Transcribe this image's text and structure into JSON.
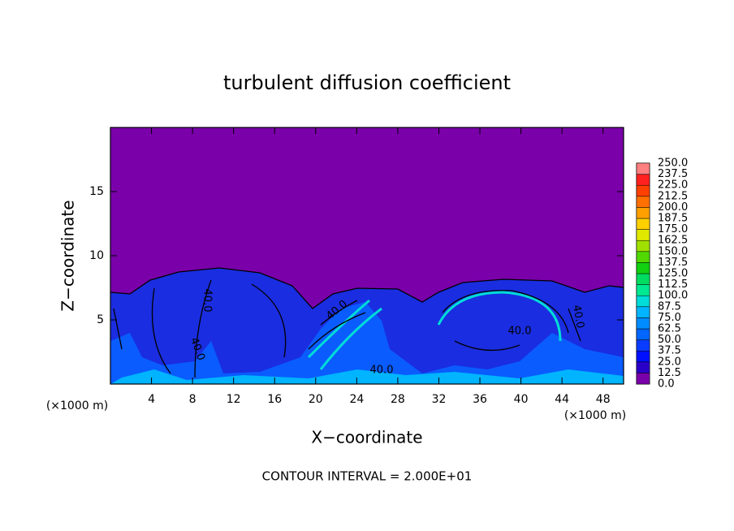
{
  "chart_data": {
    "type": "contour",
    "title": "turbulent diffusion coefficient",
    "x_label": "X−coordinate",
    "y_label": "Z−coordinate",
    "x_units": [
      "(×1000 m)",
      "(×1000 m)"
    ],
    "footnote": "CONTOUR INTERVAL = 2.000E+01",
    "contour_labels": [
      "40.0",
      "40.0",
      "40.0",
      "40.0",
      "40.0",
      "40.0"
    ],
    "xlim": [
      0,
      50
    ],
    "ylim": [
      0,
      20
    ],
    "xticks": [
      4,
      8,
      12,
      16,
      20,
      24,
      28,
      32,
      36,
      40,
      44,
      48
    ],
    "yticks": [
      5,
      10,
      15
    ],
    "colorbar": {
      "levels": [
        {
          "value": 0,
          "label": "0.0"
        },
        12.5,
        {
          "value": 25,
          "label": "25.0"
        },
        37.5,
        {
          "value": 50,
          "label": "50.0"
        },
        62.5,
        {
          "value": 75,
          "label": "75.0"
        },
        87.5,
        {
          "value": 100,
          "label": "100.0"
        },
        112.5,
        {
          "value": 125,
          "label": "125.0"
        },
        137.5,
        {
          "value": 150,
          "label": "150.0"
        },
        162.5,
        {
          "value": 175,
          "label": "175.0"
        },
        187.5,
        {
          "value": 200,
          "label": "200.0"
        },
        212.5,
        {
          "value": 225,
          "label": "225.0"
        },
        237.5,
        {
          "value": 250,
          "label": "250.0"
        }
      ],
      "colors": [
        "#7a00aa",
        "#2a00c8",
        "#0010ff",
        "#0a3cff",
        "#0066ff",
        "#008cff",
        "#00b4ff",
        "#00dcd8",
        "#00e890",
        "#00dc60",
        "#10d010",
        "#50d800",
        "#a0e000",
        "#e0e800",
        "#ffd000",
        "#ffa000",
        "#ff7000",
        "#ff4000",
        "#ff2020",
        "#ff8080"
      ]
    }
  }
}
